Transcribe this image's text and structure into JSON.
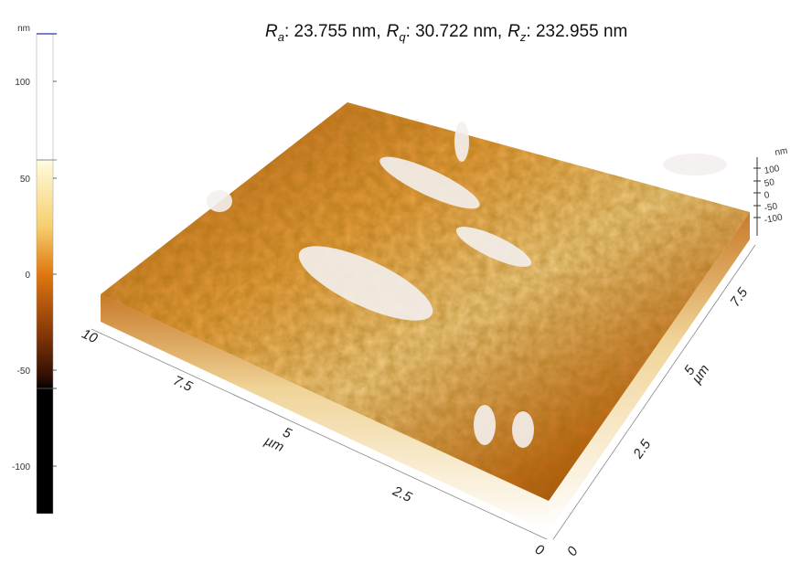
{
  "roughness": [
    {
      "symbol": "R",
      "subscript": "a",
      "text": ": 23.755 nm,"
    },
    {
      "symbol": "R",
      "subscript": "q",
      "text": ": 30.722 nm,"
    },
    {
      "symbol": "R",
      "subscript": "z",
      "text": ": 232.955 nm"
    }
  ],
  "colorbar": {
    "unit": "nm",
    "ticks": [
      "100",
      "50",
      "0",
      "-50",
      "-100"
    ]
  },
  "x_axis": {
    "unit": "µm",
    "ticks": [
      "10",
      "7.5",
      "5",
      "2.5",
      "0"
    ]
  },
  "y_axis": {
    "unit": "µm",
    "ticks": [
      "0",
      "2.5",
      "5",
      "7.5"
    ]
  },
  "z_axis": {
    "unit": "nm",
    "ticks": [
      "100",
      "50",
      "0",
      "-50",
      "-100"
    ]
  }
}
